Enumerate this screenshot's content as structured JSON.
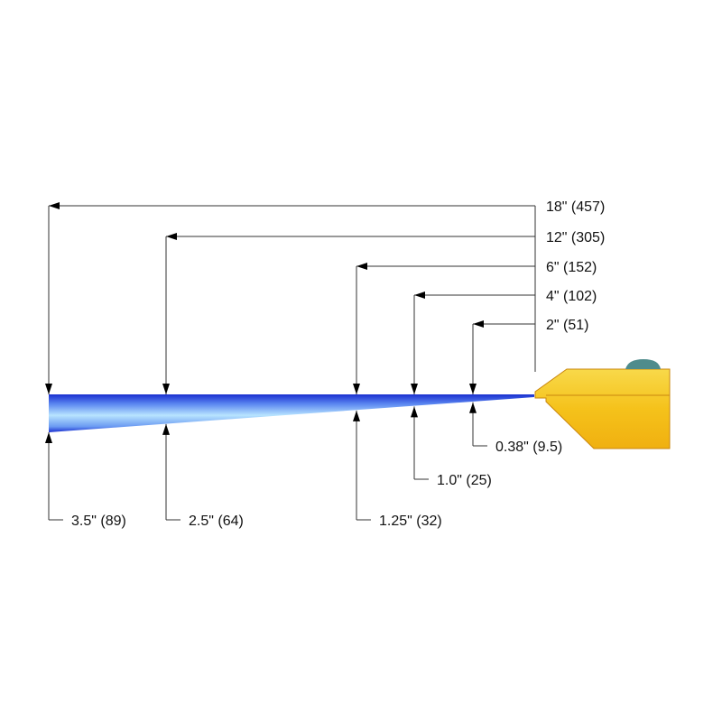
{
  "distance_labels": [
    "18\" (457)",
    "12\" (305)",
    "6\" (152)",
    "4\" (102)",
    "2\" (51)"
  ],
  "width_labels": [
    "3.5\" (89)",
    "2.5\" (64)",
    "1.25\" (32)",
    "1.0\" (25)",
    "0.38\" (9.5)"
  ],
  "colors": {
    "spray_dark": "#1a2fd0",
    "spray_light": "#b8e4ff",
    "nozzle": "#f5c21b",
    "nozzle_edge": "#c9860e",
    "cap": "#4f8c8c"
  }
}
